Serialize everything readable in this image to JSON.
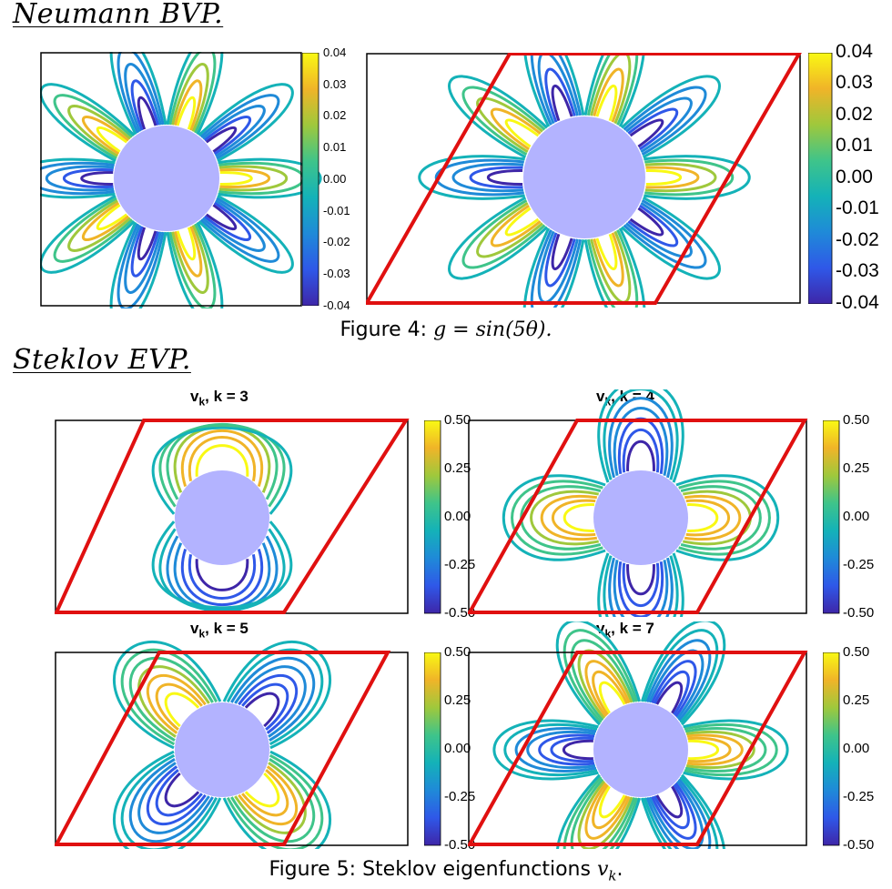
{
  "sections": {
    "neumann_heading": "Neumann BVP.",
    "steklov_heading": "Steklov EVP."
  },
  "figure4": {
    "caption_prefix": "Figure 4: ",
    "caption_math": "g = sin(5θ).",
    "colorbar_ticks": [
      "0.04",
      "0.03",
      "0.02",
      "0.01",
      "0.00",
      "-0.01",
      "-0.02",
      "-0.03",
      "-0.04"
    ]
  },
  "figure5": {
    "caption_prefix": "Figure 5: Steklov eigenfunctions ",
    "caption_math": "v",
    "caption_math_sub": "k",
    "caption_suffix": ".",
    "colorbar_ticks": [
      "0.50",
      "0.25",
      "0.00",
      "-0.25",
      "-0.50"
    ],
    "panels": [
      {
        "title_v": "v",
        "title_sub": "k",
        "title_rest": ", k = 3"
      },
      {
        "title_v": "v",
        "title_sub": "k",
        "title_rest": ", k = 4"
      },
      {
        "title_v": "v",
        "title_sub": "k",
        "title_rest": ", k = 5"
      },
      {
        "title_v": "v",
        "title_sub": "k",
        "title_rest": ", k = 7"
      }
    ]
  },
  "colors": {
    "domain_edge": "#e01010",
    "inclusion": "#b3b3ff",
    "frame": "#000000",
    "colormap": [
      "#3e26a8",
      "#2f58e8",
      "#1f8ad8",
      "#14b2b8",
      "#3fc48a",
      "#9fc83c",
      "#f0b428",
      "#f9f914"
    ]
  }
}
